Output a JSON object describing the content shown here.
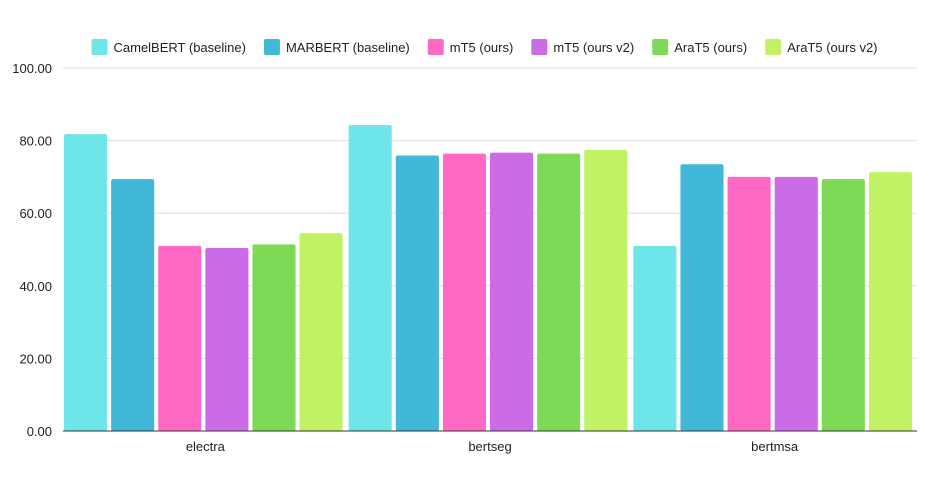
{
  "chart_data": {
    "type": "bar",
    "title": "",
    "xlabel": "",
    "ylabel": "",
    "categories": [
      "electra",
      "bertseg",
      "bertmsa"
    ],
    "ylim": [
      0,
      100
    ],
    "yticks": [
      "0.00",
      "20.00",
      "40.00",
      "60.00",
      "80.00",
      "100.00"
    ],
    "grid": true,
    "legend_position": "top",
    "series": [
      {
        "name": "CamelBERT (baseline)",
        "color": "#6ee5e8",
        "values": [
          81.8,
          84.3,
          51.0
        ]
      },
      {
        "name": "MARBERT (baseline)",
        "color": "#41b8d7",
        "values": [
          69.4,
          75.9,
          73.5
        ]
      },
      {
        "name": "mT5 (ours)",
        "color": "#ff69c4",
        "values": [
          51.0,
          76.4,
          70.0
        ]
      },
      {
        "name": "mT5 (ours v2)",
        "color": "#cb6ce6",
        "values": [
          50.4,
          76.7,
          70.0
        ]
      },
      {
        "name": "AraT5 (ours)",
        "color": "#7ed957",
        "values": [
          51.4,
          76.4,
          69.4
        ]
      },
      {
        "name": "AraT5 (ours v2)",
        "color": "#c1f263",
        "values": [
          54.5,
          77.4,
          71.3
        ]
      }
    ]
  }
}
